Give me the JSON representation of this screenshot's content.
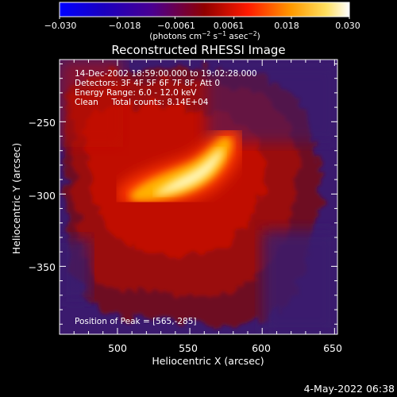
{
  "colorbar": {
    "ticks": [
      "−0.030",
      "−0.018",
      "−0.0061",
      "0.0061",
      "0.018",
      "0.030"
    ],
    "unit_main": "(photons cm",
    "unit_exp1": "−2",
    "unit_mid": " s",
    "unit_exp2": "−1",
    "unit_end": " asec",
    "unit_exp3": "−2",
    "unit_close": ")"
  },
  "chart_data": {
    "type": "heatmap",
    "title": "Reconstructed RHESSI Image",
    "xlabel": "Heliocentric X (arcsec)",
    "ylabel": "Heliocentric Y (arcsec)",
    "xlim": [
      460,
      652
    ],
    "ylim": [
      -397,
      -207
    ],
    "x_ticks": [
      500,
      550,
      600,
      650
    ],
    "y_ticks": [
      -250,
      -300,
      -350
    ],
    "colorbar_range": [
      -0.03,
      0.03
    ],
    "peak_position": [
      565,
      -285
    ],
    "annotations": [
      "14-Dec-2002 18:59:00.000 to 19:02:28.000",
      "Detectors: 3F 4F 5F 6F 7F 8F, Att 0",
      "Energy Range: 6.0 - 12.0 keV",
      "Clean     Total counts: 8.14E+04"
    ],
    "peak_label": "Position of Peak = [565,-285]"
  },
  "footer": {
    "timestamp": "4-May-2022 06:38"
  }
}
